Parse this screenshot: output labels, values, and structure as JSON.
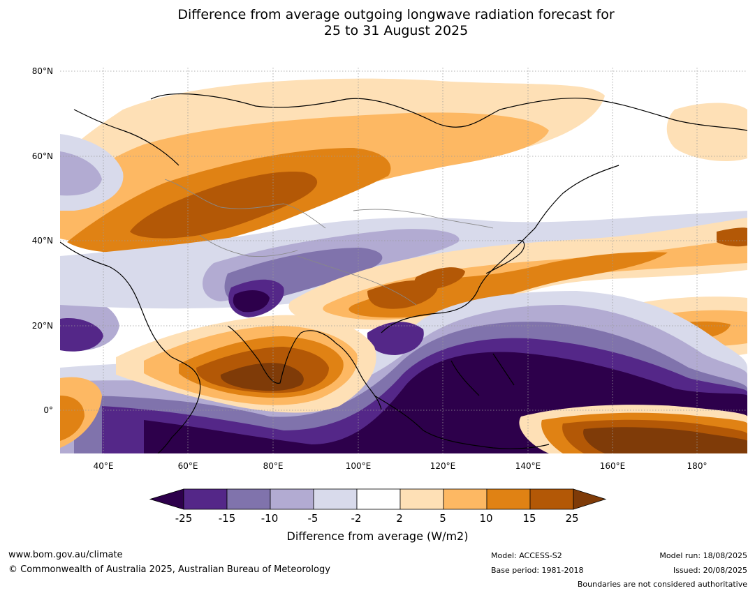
{
  "title": {
    "line1": "Difference from average outgoing longwave radiation forecast for",
    "line2": "25 to 31 August 2025"
  },
  "map": {
    "latitude_labels": [
      "80°N",
      "60°N",
      "40°N",
      "20°N",
      "0°"
    ],
    "longitude_labels": [
      "40°E",
      "60°E",
      "80°E",
      "100°E",
      "120°E",
      "140°E",
      "160°E",
      "180°"
    ],
    "extent": {
      "lon_min": 30,
      "lon_max": 191,
      "lat_min": -10,
      "lat_max": 81
    }
  },
  "colorbar": {
    "tick_labels": [
      "-25",
      "-15",
      "-10",
      "-5",
      "-2",
      "2",
      "5",
      "10",
      "15",
      "25"
    ],
    "label": "Difference from average (W/m2)",
    "extend": "both",
    "colors": {
      "below_min": "#2d004b",
      "bins": [
        "#542788",
        "#8073ac",
        "#b2abd2",
        "#d8daeb",
        "#ffffff",
        "#fee0b6",
        "#fdb863",
        "#e08214",
        "#b35806"
      ],
      "above_max": "#7f3b08"
    }
  },
  "footer": {
    "website": "www.bom.gov.au/climate",
    "copyright": "© Commonwealth of Australia 2025, Australian Bureau of Meteorology",
    "model": "Model: ACCESS-S2",
    "base_period": "Base period: 1981-2018",
    "model_run": "Model run: 18/08/2025",
    "issued": "Issued: 20/08/2025",
    "disclaimer": "Boundaries are not considered authoritative"
  }
}
